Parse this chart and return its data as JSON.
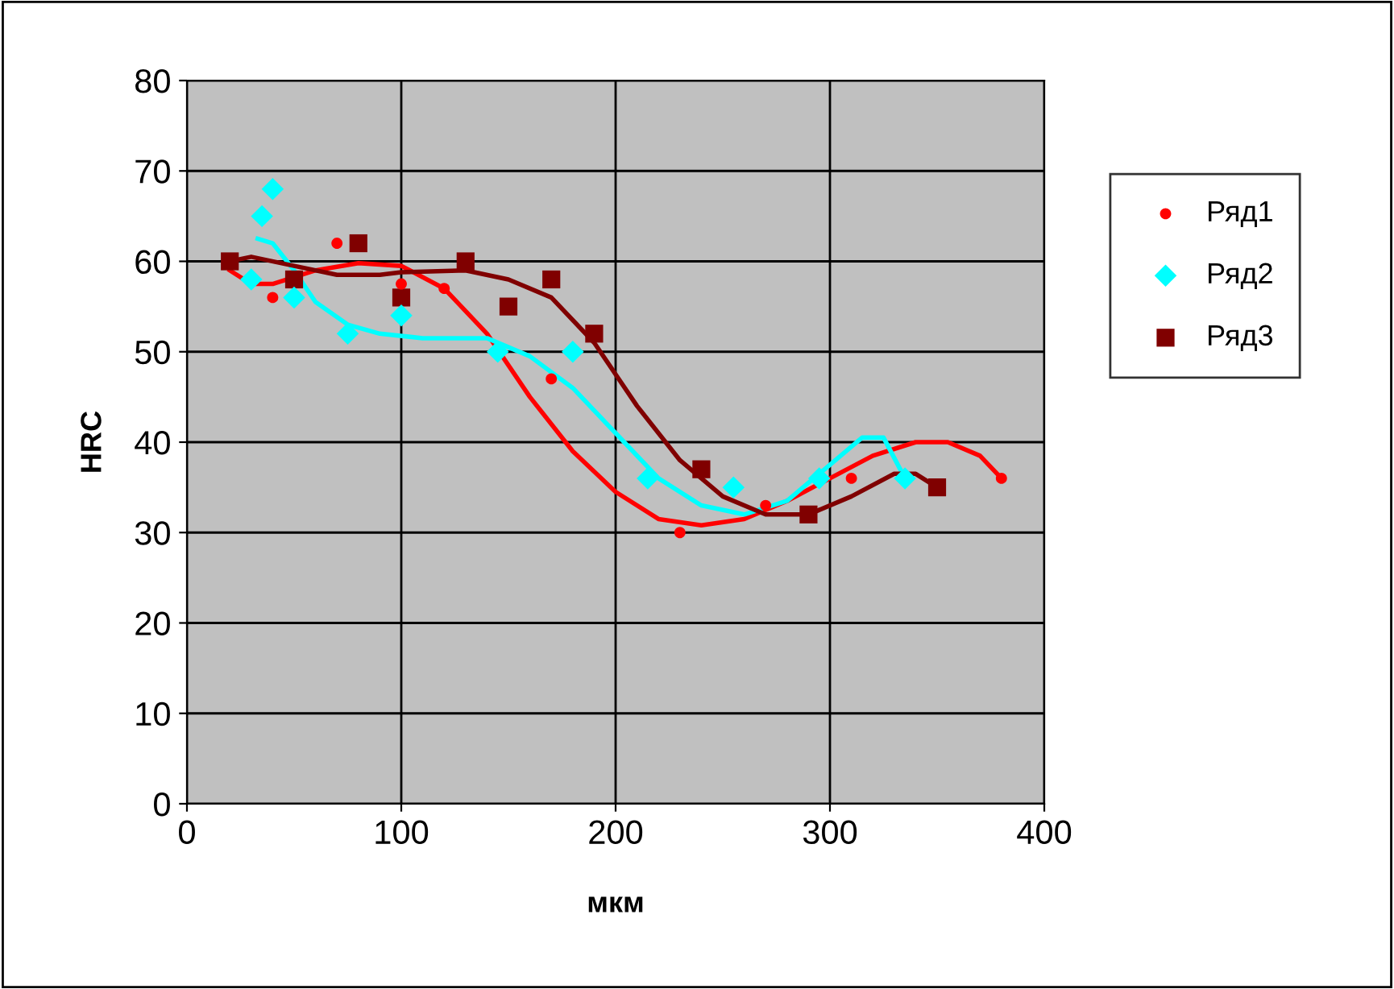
{
  "chart_data": {
    "type": "scatter",
    "xlabel": "мкм",
    "ylabel": "HRC",
    "xlim": [
      0,
      400
    ],
    "xticks": [
      0,
      100,
      200,
      300,
      400
    ],
    "ylim": [
      0,
      80
    ],
    "yticks": [
      0,
      10,
      20,
      30,
      40,
      50,
      60,
      70,
      80
    ],
    "grid": true,
    "legend": "right",
    "series": [
      {
        "name": "Ряд1",
        "color": "#ff0000",
        "marker": "circle",
        "x": [
          40,
          70,
          100,
          120,
          170,
          230,
          270,
          310,
          380
        ],
        "values": [
          56,
          62,
          57.5,
          57,
          47,
          30,
          33,
          36,
          36
        ]
      },
      {
        "name": "Ряд2",
        "color": "#00ffff",
        "marker": "diamond",
        "x": [
          30,
          35,
          40,
          50,
          75,
          100,
          145,
          180,
          215,
          255,
          295,
          335
        ],
        "values": [
          58,
          65,
          68,
          56,
          52,
          54,
          50,
          50,
          36,
          35,
          36,
          36
        ]
      },
      {
        "name": "Ряд3",
        "color": "#800000",
        "marker": "square",
        "x": [
          20,
          50,
          80,
          100,
          130,
          150,
          170,
          190,
          240,
          290,
          350
        ],
        "values": [
          60,
          58,
          62,
          56,
          60,
          55,
          58,
          52,
          37,
          32,
          35
        ]
      },
      {
        "type": "line",
        "color": "#ff0000",
        "x": [
          20,
          30,
          40,
          60,
          80,
          100,
          120,
          140,
          160,
          180,
          200,
          220,
          240,
          260,
          280,
          300,
          320,
          340,
          355,
          370,
          380
        ],
        "values": [
          59,
          57.5,
          57.5,
          59,
          59.8,
          59.5,
          57,
          52,
          45,
          39,
          34.5,
          31.5,
          30.8,
          31.5,
          33.5,
          36,
          38.5,
          40,
          40,
          38.5,
          36
        ]
      },
      {
        "type": "line",
        "color": "#00ffff",
        "x": [
          33,
          40,
          50,
          60,
          75,
          90,
          110,
          140,
          160,
          180,
          200,
          220,
          240,
          260,
          280,
          300,
          315,
          325,
          335
        ],
        "values": [
          62.5,
          62,
          59,
          55.5,
          53,
          52,
          51.5,
          51.5,
          49.5,
          46,
          41,
          36,
          33,
          32,
          33.5,
          37.5,
          40.5,
          40.5,
          36
        ]
      },
      {
        "type": "line",
        "color": "#800000",
        "x": [
          20,
          30,
          50,
          70,
          90,
          100,
          130,
          150,
          170,
          190,
          210,
          230,
          250,
          270,
          290,
          310,
          330,
          340,
          350
        ],
        "values": [
          60,
          60.5,
          59.5,
          58.5,
          58.5,
          58.8,
          59,
          58,
          56,
          51,
          44,
          38,
          34,
          32,
          32,
          34,
          36.5,
          36.5,
          35
        ]
      }
    ]
  }
}
